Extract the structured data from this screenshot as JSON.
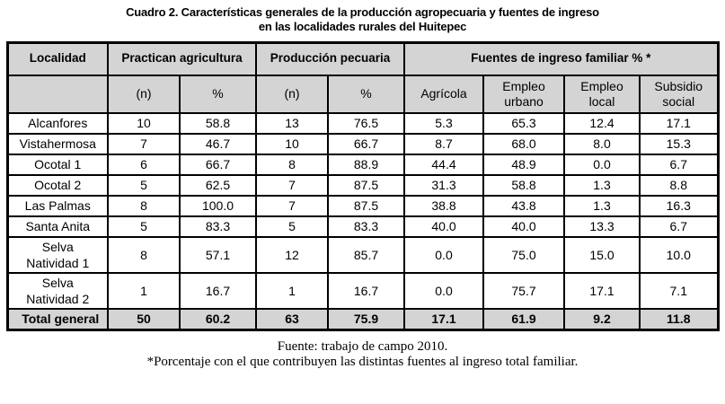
{
  "title": {
    "line1": "Cuadro 2. Características generales de la producción agropecuaria y fuentes de ingreso",
    "line2": "en las localidades rurales del Huitepec"
  },
  "table": {
    "col_localidad": "Localidad",
    "groups": [
      "Practican agricultura",
      "Producción pecuaria",
      "Fuentes de ingreso familiar % *"
    ],
    "sub_headers": [
      "(n)",
      "%",
      "(n)",
      "%",
      "Agrícola",
      "Empleo urbano",
      "Empleo local",
      "Subsidio social"
    ],
    "rows": [
      {
        "localidad": "Alcanfores",
        "values": [
          "10",
          "58.8",
          "13",
          "76.5",
          "5.3",
          "65.3",
          "12.4",
          "17.1"
        ]
      },
      {
        "localidad": "Vistahermosa",
        "values": [
          "7",
          "46.7",
          "10",
          "66.7",
          "8.7",
          "68.0",
          "8.0",
          "15.3"
        ]
      },
      {
        "localidad": "Ocotal 1",
        "values": [
          "6",
          "66.7",
          "8",
          "88.9",
          "44.4",
          "48.9",
          "0.0",
          "6.7"
        ]
      },
      {
        "localidad": "Ocotal 2",
        "values": [
          "5",
          "62.5",
          "7",
          "87.5",
          "31.3",
          "58.8",
          "1.3",
          "8.8"
        ]
      },
      {
        "localidad": "Las Palmas",
        "values": [
          "8",
          "100.0",
          "7",
          "87.5",
          "38.8",
          "43.8",
          "1.3",
          "16.3"
        ]
      },
      {
        "localidad": "Santa Anita",
        "values": [
          "5",
          "83.3",
          "5",
          "83.3",
          "40.0",
          "40.0",
          "13.3",
          "6.7"
        ]
      },
      {
        "localidad": "Selva\nNatividad 1",
        "values": [
          "8",
          "57.1",
          "12",
          "85.7",
          "0.0",
          "75.0",
          "15.0",
          "10.0"
        ]
      },
      {
        "localidad": "Selva\nNatividad 2",
        "values": [
          "1",
          "16.7",
          "1",
          "16.7",
          "0.0",
          "75.7",
          "17.1",
          "7.1"
        ]
      }
    ],
    "total_row": {
      "label": "Total general",
      "values": [
        "50",
        "60.2",
        "63",
        "75.9",
        "17.1",
        "61.9",
        "9.2",
        "11.8"
      ]
    }
  },
  "footer": {
    "source": "Fuente: trabajo de campo 2010.",
    "note": "*Porcentaje con el que contribuyen las distintas fuentes al ingreso total familiar."
  },
  "colors": {
    "page_bg": "#ffffff",
    "header_bg": "#d4d4d4",
    "total_bg": "#d4d4d4",
    "border": "#000000",
    "text": "#000000"
  }
}
